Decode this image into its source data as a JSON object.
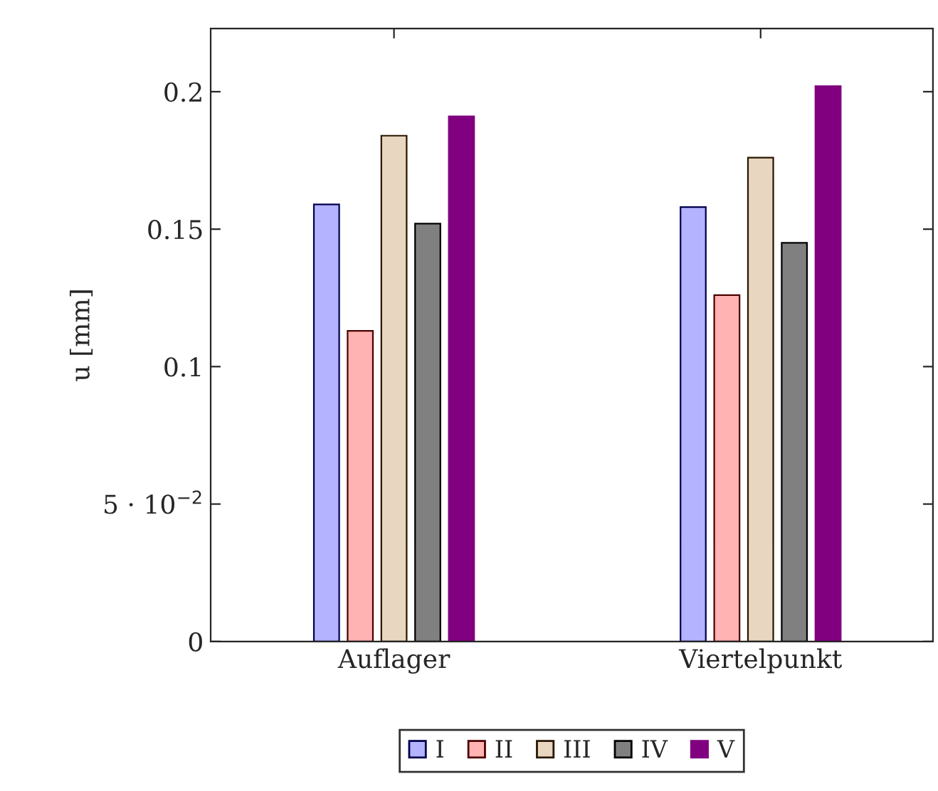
{
  "chart_data": {
    "type": "bar",
    "ylabel": "u [mm]",
    "categories": [
      "Auflager",
      "Viertelpunkt"
    ],
    "series": [
      {
        "name": "I",
        "color": "#b3b3ff",
        "values": [
          0.159,
          0.158
        ]
      },
      {
        "name": "II",
        "color": "#ffb3b3",
        "values": [
          0.113,
          0.126
        ]
      },
      {
        "name": "III",
        "color": "#e8d6c0",
        "values": [
          0.184,
          0.176
        ]
      },
      {
        "name": "IV",
        "color": "#808080",
        "values": [
          0.152,
          0.145
        ]
      },
      {
        "name": "V",
        "color": "#800080",
        "values": [
          0.191,
          0.202
        ]
      }
    ],
    "ylim": [
      0,
      0.223
    ],
    "yticks": [
      0,
      {
        "value": 0.05,
        "label": "5 · 10$^{−2}$"
      },
      0.1,
      0.15,
      0.2
    ],
    "grid": false,
    "legend": "bottom"
  }
}
